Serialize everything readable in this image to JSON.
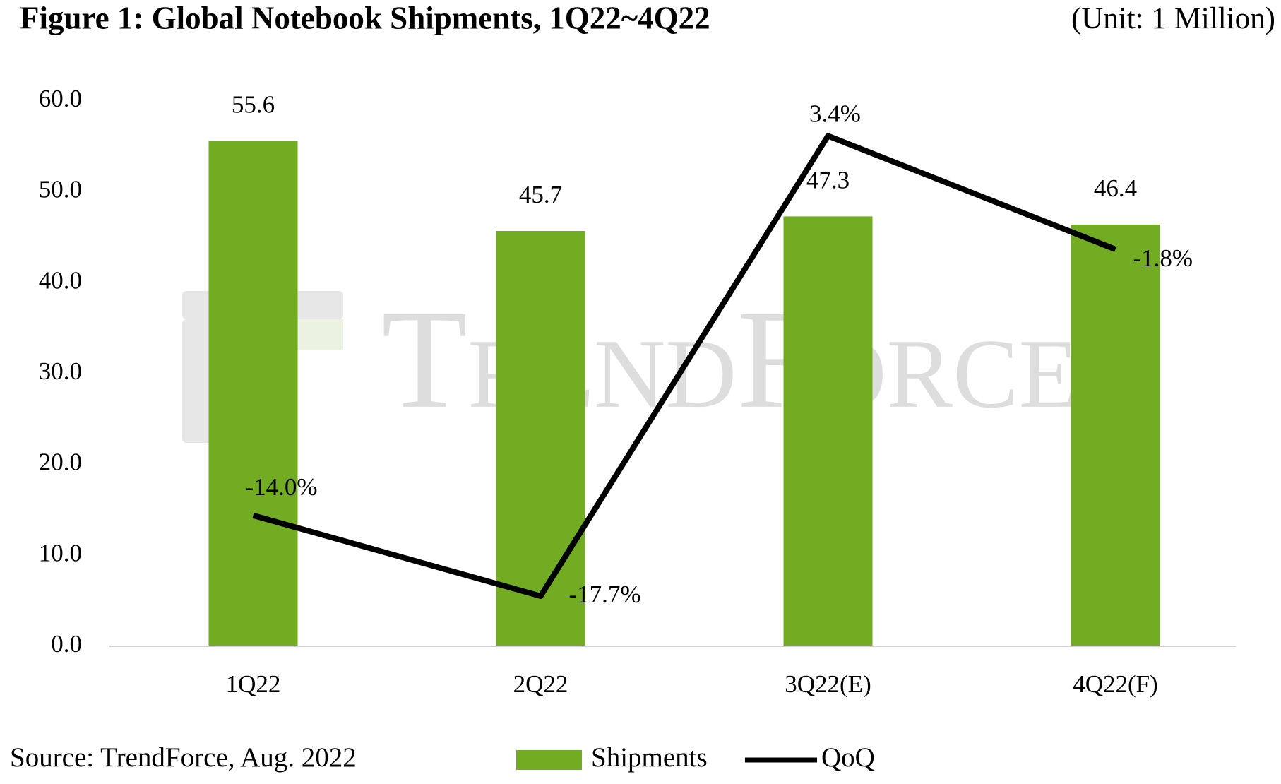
{
  "chart_data": {
    "type": "bar_line",
    "title": "Figure 1: Global Notebook Shipments, 1Q22~4Q22",
    "unit_note": "(Unit: 1 Million)",
    "source": "Source: TrendForce, Aug. 2022",
    "watermark": "TrendForce",
    "categories": [
      "1Q22",
      "2Q22",
      "3Q22(E)",
      "4Q22(F)"
    ],
    "series": [
      {
        "name": "Shipments",
        "type": "bar",
        "color": "#72ac22",
        "values": [
          55.6,
          45.7,
          47.3,
          46.4
        ]
      },
      {
        "name": "QoQ",
        "type": "line",
        "color": "#000000",
        "axis": "y2",
        "values": [
          -14.0,
          -17.7,
          3.4,
          -1.8
        ],
        "value_labels": [
          "-14.0%",
          "-17.7%",
          "3.4%",
          "-1.8%"
        ]
      }
    ],
    "ylim": [
      0,
      60
    ],
    "yticks": [
      {
        "value": 0,
        "label": "0.0"
      },
      {
        "value": 10,
        "label": "10.0"
      },
      {
        "value": 20,
        "label": "20.0"
      },
      {
        "value": 30,
        "label": "30.0"
      },
      {
        "value": 40,
        "label": "40.0"
      },
      {
        "value": 50,
        "label": "50.0"
      },
      {
        "value": 60,
        "label": "60.0"
      }
    ],
    "y2lim": [
      -20,
      5
    ],
    "grid": false
  }
}
